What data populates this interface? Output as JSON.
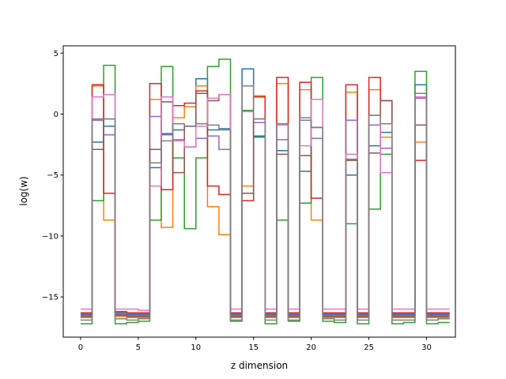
{
  "chart_data": {
    "type": "line",
    "step": "post",
    "title": "",
    "xlabel": "z dimension",
    "ylabel": "log(w)",
    "xlim": [
      -1.5,
      32.5
    ],
    "ylim": [
      -18.3,
      5.6
    ],
    "xticks": [
      0,
      5,
      10,
      15,
      20,
      25,
      30
    ],
    "xtick_labels": [
      "0",
      "5",
      "10",
      "15",
      "20",
      "25",
      "30"
    ],
    "yticks": [
      -15,
      -10,
      -5,
      0,
      5
    ],
    "ytick_labels": [
      "−15",
      "−10",
      "−5",
      "0",
      "5"
    ],
    "grid": false,
    "x": [
      0,
      1,
      2,
      3,
      4,
      5,
      6,
      7,
      8,
      9,
      10,
      11,
      12,
      13,
      14,
      15,
      16,
      17,
      18,
      19,
      20,
      21,
      22,
      23,
      24,
      25,
      26,
      27,
      28,
      29,
      30,
      31
    ],
    "series": [
      {
        "color": "#1f77b4",
        "values": [
          -16.4,
          -2.3,
          -1.0,
          -16.3,
          -16.4,
          -16.4,
          -4.4,
          -1.6,
          -1.3,
          -1.0,
          2.9,
          -1.3,
          -1.2,
          -16.4,
          3.7,
          -1.8,
          -16.4,
          -3.0,
          -16.4,
          -4.7,
          -1.1,
          -16.4,
          -16.4,
          -5.0,
          -16.4,
          -2.6,
          -1.5,
          -16.4,
          -16.4,
          2.4,
          -16.4,
          -16.4
        ]
      },
      {
        "color": "#ff7f0e",
        "values": [
          -16.7,
          2.3,
          -8.7,
          -16.6,
          -16.7,
          -16.7,
          1.2,
          -9.3,
          -0.3,
          0.6,
          2.3,
          -7.6,
          -9.9,
          -16.7,
          -5.9,
          1.5,
          -16.7,
          2.5,
          -16.7,
          2.0,
          -8.7,
          -16.7,
          -16.7,
          1.8,
          -16.7,
          2.0,
          -1.9,
          -16.7,
          -16.7,
          -2.3,
          -16.7,
          -16.7
        ]
      },
      {
        "color": "#2ca02c",
        "values": [
          -17.2,
          -7.1,
          4.0,
          -17.2,
          -17.1,
          -17.0,
          -8.7,
          3.9,
          -3.6,
          -9.4,
          -3.6,
          3.9,
          4.5,
          -17.0,
          0.3,
          -1.9,
          -17.2,
          -8.7,
          -17.0,
          -7.3,
          3.0,
          -17.0,
          -17.1,
          -9.0,
          -17.2,
          -7.8,
          -3.3,
          -17.2,
          -17.1,
          3.5,
          -17.2,
          -17.1
        ]
      },
      {
        "color": "#d62728",
        "values": [
          -16.3,
          2.4,
          -6.5,
          -16.2,
          -16.3,
          -16.3,
          2.5,
          -6.2,
          0.7,
          0.9,
          1.9,
          -5.9,
          -6.6,
          -16.3,
          -7.1,
          1.4,
          -16.3,
          3.0,
          -16.3,
          2.6,
          -6.9,
          -16.3,
          -16.3,
          2.4,
          -16.3,
          3.0,
          1.1,
          -16.3,
          -16.3,
          -3.8,
          -16.3,
          -16.3
        ]
      },
      {
        "color": "#9467bd",
        "values": [
          -16.5,
          -0.5,
          -1.7,
          -16.4,
          -16.5,
          -16.5,
          -0.2,
          -1.7,
          -2.1,
          -2.7,
          -2.0,
          -1.8,
          -2.9,
          -16.5,
          -6.5,
          -0.7,
          -16.5,
          -2.1,
          -16.5,
          -0.3,
          -2.0,
          -16.5,
          -16.5,
          -0.5,
          -16.5,
          -0.9,
          -2.8,
          -16.5,
          -16.5,
          1.3,
          -16.5,
          -16.5
        ]
      },
      {
        "color": "#8c564b",
        "values": [
          -16.6,
          -2.9,
          -0.4,
          -16.5,
          -16.6,
          -16.6,
          -2.9,
          1.0,
          -4.8,
          -1.0,
          1.7,
          1.1,
          1.6,
          -16.6,
          -6.5,
          -0.4,
          -16.6,
          -3.3,
          -16.6,
          -3.4,
          -1.1,
          -16.6,
          -16.6,
          -3.8,
          -16.6,
          -3.2,
          1.1,
          -16.6,
          -16.6,
          -0.9,
          -16.6,
          -16.6
        ]
      },
      {
        "color": "#e377c2",
        "values": [
          -16.0,
          1.4,
          1.6,
          -16.0,
          -16.0,
          -16.1,
          -5.9,
          1.4,
          -2.2,
          -2.7,
          -1.0,
          1.3,
          1.6,
          -16.0,
          0.2,
          -0.4,
          -16.0,
          -0.9,
          -16.0,
          -2.6,
          1.2,
          -16.0,
          -16.0,
          -3.3,
          -16.0,
          -0.1,
          -4.8,
          -16.0,
          -16.0,
          1.4,
          -16.0,
          -16.0
        ]
      },
      {
        "color": "#7f7f7f",
        "values": [
          -16.9,
          -0.4,
          -0.4,
          -16.8,
          -16.9,
          -16.8,
          -4.0,
          -2.2,
          -0.8,
          -1.0,
          -0.8,
          -0.9,
          -1.3,
          -16.9,
          2.3,
          -0.4,
          -16.9,
          -0.8,
          -16.9,
          -0.5,
          -1.1,
          -16.8,
          -16.9,
          -3.7,
          -16.9,
          -0.1,
          -0.8,
          -16.9,
          -16.9,
          1.7,
          -16.9,
          -16.8
        ]
      }
    ]
  }
}
